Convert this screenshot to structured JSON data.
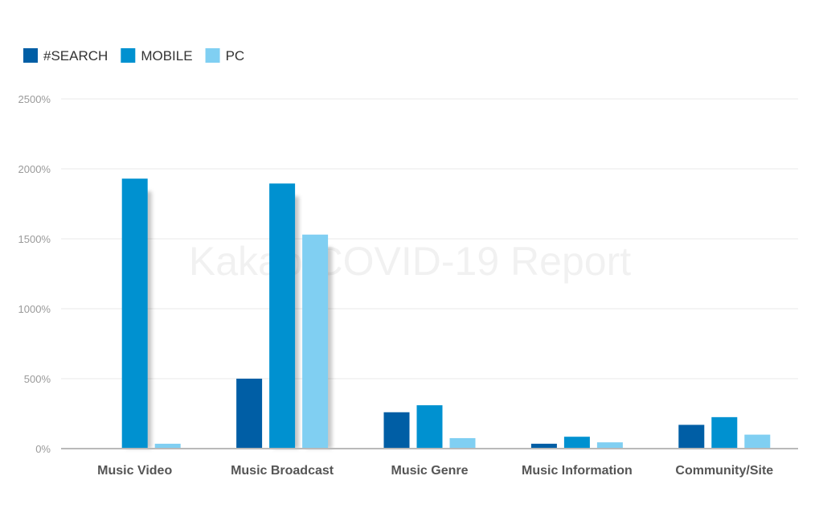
{
  "watermark": "Kakao COVID-19 Report",
  "chart_data": {
    "type": "bar",
    "title": "",
    "xlabel": "",
    "ylabel": "",
    "categories": [
      "Music Video",
      "Music Broadcast",
      "Music Genre",
      "Music Information",
      "Community/Site"
    ],
    "series": [
      {
        "name": "#SEARCH",
        "color": "#005ea5",
        "values": [
          0,
          500,
          260,
          35,
          170
        ]
      },
      {
        "name": "MOBILE",
        "color": "#0091d0",
        "values": [
          1930,
          1895,
          310,
          85,
          225
        ]
      },
      {
        "name": "PC",
        "color": "#80cff2",
        "values": [
          35,
          1530,
          75,
          45,
          100
        ]
      }
    ],
    "ylim": [
      0,
      2500
    ],
    "yticks": [
      0,
      500,
      1000,
      1500,
      2000,
      2500
    ],
    "ytick_labels": [
      "0%",
      "500%",
      "1000%",
      "1500%",
      "2000%",
      "2500%"
    ],
    "grid": true,
    "legend_position": "top-left"
  }
}
